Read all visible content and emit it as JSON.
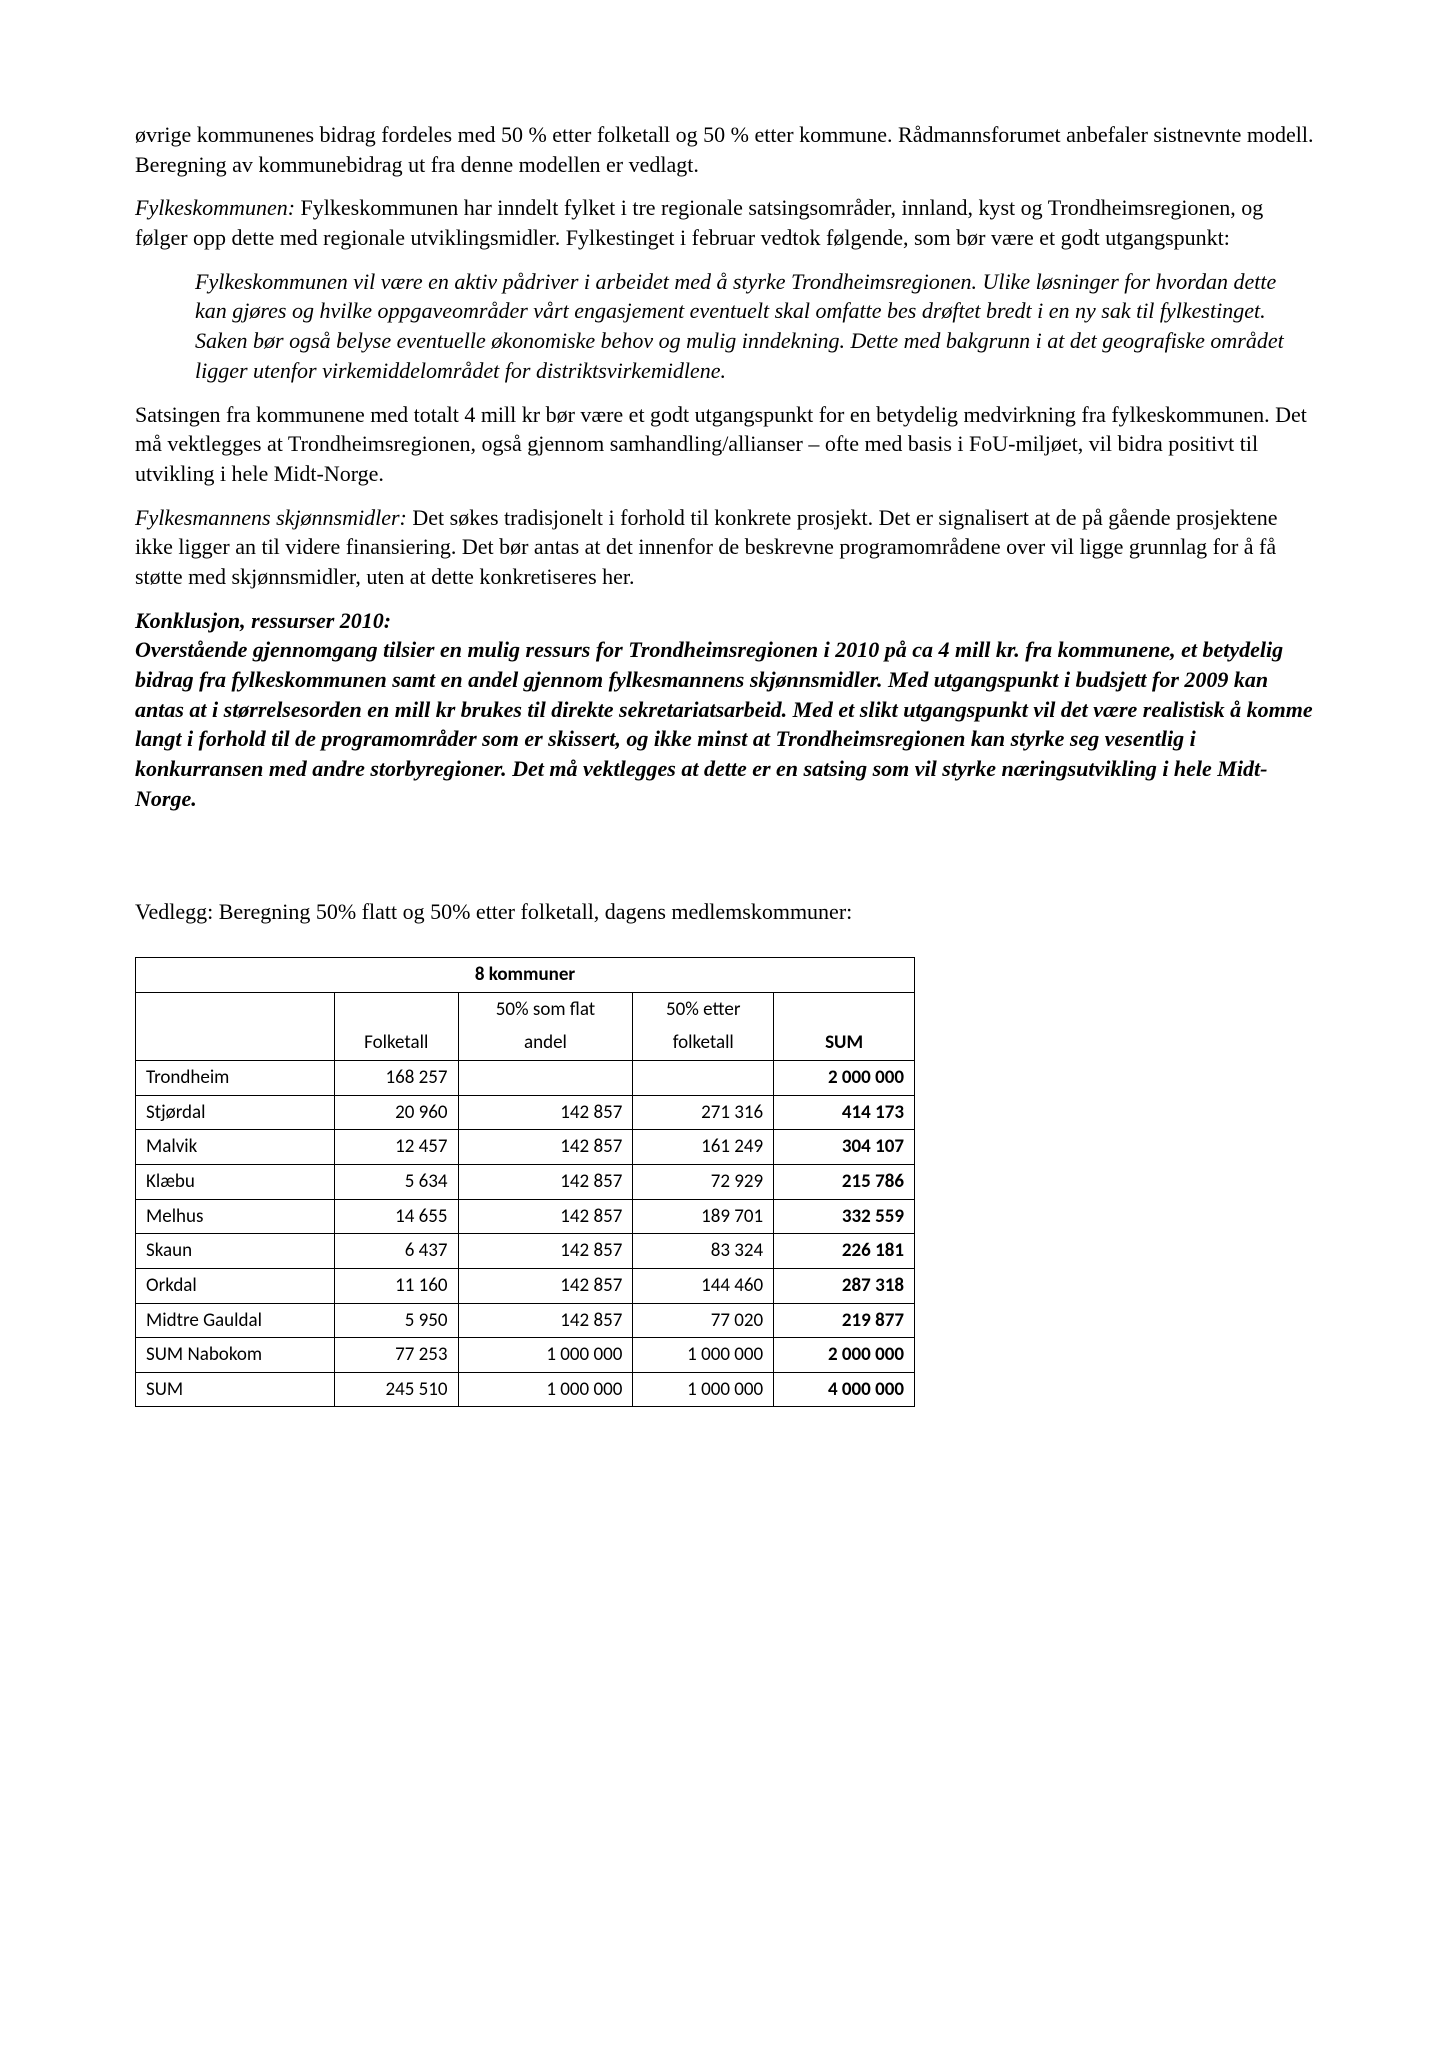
{
  "para1": "øvrige kommunenes bidrag fordeles med 50 % etter folketall og 50 % etter kommune. Rådmannsforumet anbefaler sistnevnte modell. Beregning av kommunebidrag ut fra denne modellen er vedlagt.",
  "para2_lead": "Fylkeskommunen:",
  "para2_rest": " Fylkeskommunen har inndelt fylket i tre regionale satsingsområder, innland, kyst og Trondheimsregionen, og følger opp dette med regionale utviklingsmidler. Fylkestinget i februar vedtok følgende, som bør være et godt utgangspunkt:",
  "quote": "Fylkeskommunen vil være en aktiv pådriver i arbeidet med å styrke Trondheimsregionen. Ulike løsninger for hvordan dette kan gjøres og hvilke oppgaveområder vårt engasjement eventuelt skal omfatte bes drøftet bredt i en ny sak til fylkestinget. Saken bør også belyse eventuelle økonomiske behov og mulig inndekning. Dette med bakgrunn i at det geografiske området ligger utenfor virkemiddelområdet for distriktsvirkemidlene.",
  "para3": "Satsingen fra kommunene med totalt 4 mill kr bør være et godt utgangspunkt for en betydelig medvirkning fra fylkeskommunen. Det må vektlegges at Trondheimsregionen, også gjennom samhandling/allianser – ofte med basis i FoU-miljøet, vil bidra positivt til utvikling i hele Midt-Norge.",
  "para4_lead": "Fylkesmannens skjønnsmidler:",
  "para4_rest": " Det søkes tradisjonelt i forhold til konkrete prosjekt. Det er signalisert at de på gående prosjektene ikke ligger an til videre finansiering. Det bør antas at det innenfor de beskrevne programområdene over vil ligge grunnlag for å få støtte med skjønnsmidler, uten at dette konkretiseres her.",
  "konklusjon_head": "Konklusjon, ressurser 2010:",
  "konklusjon_body": "Overstående gjennomgang tilsier en mulig ressurs for Trondheimsregionen i 2010 på ca 4 mill kr. fra kommunene, et betydelig bidrag fra fylkeskommunen samt en andel gjennom fylkesmannens skjønnsmidler. Med utgangspunkt i budsjett for 2009 kan antas at i størrelsesorden en mill kr brukes til direkte sekretariatsarbeid. Med et slikt utgangspunkt vil det være realistisk å komme langt i forhold til de programområder som er skissert, og ikke minst at Trondheimsregionen kan styrke seg vesentlig i konkurransen med andre storbyregioner. Det må vektlegges at dette er en satsing som vil styrke næringsutvikling i hele Midt-Norge.",
  "vedlegg": "Vedlegg: Beregning 50% flatt og 50% etter folketall, dagens medlemskommuner:",
  "table": {
    "title": "8 kommuner",
    "headers": {
      "c1": "",
      "c2": "Folketall",
      "c3a": "50% som flat",
      "c3b": "andel",
      "c4a": "50% etter",
      "c4b": "folketall",
      "c5": "SUM"
    },
    "rows": [
      {
        "name": "Trondheim",
        "folketall": "168 257",
        "flat": "",
        "etter": "",
        "sum": "2 000 000"
      },
      {
        "name": "Stjørdal",
        "folketall": "20 960",
        "flat": "142 857",
        "etter": "271 316",
        "sum": "414 173"
      },
      {
        "name": "Malvik",
        "folketall": "12 457",
        "flat": "142 857",
        "etter": "161 249",
        "sum": "304 107"
      },
      {
        "name": "Klæbu",
        "folketall": "5 634",
        "flat": "142 857",
        "etter": "72 929",
        "sum": "215 786"
      },
      {
        "name": "Melhus",
        "folketall": "14 655",
        "flat": "142 857",
        "etter": "189 701",
        "sum": "332 559"
      },
      {
        "name": "Skaun",
        "folketall": "6 437",
        "flat": "142 857",
        "etter": "83 324",
        "sum": "226 181"
      },
      {
        "name": "Orkdal",
        "folketall": "11 160",
        "flat": "142 857",
        "etter": "144 460",
        "sum": "287 318"
      },
      {
        "name": "Midtre Gauldal",
        "folketall": "5 950",
        "flat": "142 857",
        "etter": "77 020",
        "sum": "219 877"
      },
      {
        "name": "SUM Nabokom",
        "folketall": "77 253",
        "flat": "1 000 000",
        "etter": "1 000 000",
        "sum": "2 000 000"
      },
      {
        "name": "SUM",
        "folketall": "245 510",
        "flat": "1 000 000",
        "etter": "1 000 000",
        "sum": "4 000 000"
      }
    ]
  }
}
